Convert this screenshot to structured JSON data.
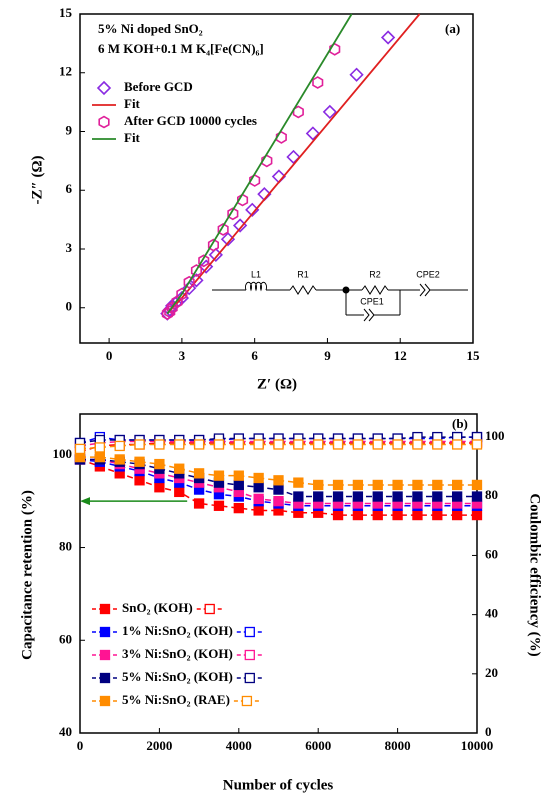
{
  "chart_data": [
    {
      "type": "scatter",
      "title": "5% Ni doped SnO₂",
      "subtitle": "6 M KOH+0.1 M K₄[Fe(CN)₆]",
      "panel_label": "(a)",
      "x_label": "Z′ (Ω)",
      "y_label": "-Z″ (Ω)",
      "xlim": [
        -1.2,
        15
      ],
      "ylim": [
        -1.8,
        15
      ],
      "xticks": [
        0,
        3,
        6,
        9,
        12,
        15
      ],
      "yticks": [
        0,
        3,
        6,
        9,
        12,
        15
      ],
      "series": [
        {
          "name": "Before GCD",
          "color": "#8a2be2",
          "marker": "diamond",
          "x": [
            2.4,
            2.5,
            2.6,
            2.8,
            3.0,
            3.3,
            3.6,
            4.0,
            4.4,
            4.9,
            5.4,
            5.9,
            6.4,
            7.0,
            7.6,
            8.4,
            9.1,
            10.2,
            11.5
          ],
          "values": [
            -0.3,
            -0.1,
            0.1,
            0.3,
            0.5,
            1.0,
            1.4,
            2.1,
            2.7,
            3.5,
            4.2,
            5.0,
            5.8,
            6.7,
            7.7,
            8.9,
            10.0,
            11.9,
            13.8
          ]
        },
        {
          "name": "Fit",
          "color": "#e02020",
          "marker": "none",
          "x": [
            2.4,
            3.0,
            12.8
          ],
          "values": [
            -0.3,
            0.5,
            15
          ]
        },
        {
          "name": "After GCD 10000 cycles",
          "color": "#e0209a",
          "marker": "hexagon",
          "x": [
            2.4,
            2.5,
            2.6,
            2.8,
            3.0,
            3.3,
            3.6,
            3.9,
            4.3,
            4.7,
            5.1,
            5.5,
            6.0,
            6.5,
            7.1,
            7.8,
            8.6,
            9.3
          ],
          "values": [
            -0.3,
            -0.2,
            0.0,
            0.3,
            0.7,
            1.3,
            1.9,
            2.4,
            3.2,
            4.0,
            4.8,
            5.5,
            6.5,
            7.5,
            8.7,
            10.0,
            11.5,
            13.2
          ]
        },
        {
          "name": "Fit",
          "color": "#2a8a2a",
          "marker": "none",
          "x": [
            2.4,
            3.0,
            10.0
          ],
          "values": [
            -0.3,
            0.7,
            15
          ]
        }
      ],
      "circuit": [
        "L1",
        "R1",
        "R2",
        "CPE1",
        "CPE2"
      ]
    },
    {
      "type": "line",
      "panel_label": "(b)",
      "x_label": "Number of cycles",
      "y_label": "Capacitance retention (%)",
      "y2_label": "Coulombic efficiency (%)",
      "xlim": [
        0,
        10000
      ],
      "ylim": [
        40,
        108.8
      ],
      "y2lim": [
        0,
        107.8
      ],
      "xticks": [
        0,
        2000,
        4000,
        6000,
        8000,
        10000
      ],
      "yticks": [
        40,
        60,
        80,
        100
      ],
      "y2ticks": [
        0,
        20,
        40,
        60,
        80,
        100
      ],
      "x": [
        0,
        500,
        1000,
        1500,
        2000,
        2500,
        3000,
        3500,
        4000,
        4500,
        5000,
        5500,
        6000,
        6500,
        7000,
        7500,
        8000,
        8500,
        9000,
        9500,
        10000
      ],
      "series": [
        {
          "name": "SnO₂ (KOH)",
          "color": "#ff0000",
          "values": [
            99,
            97.5,
            96,
            94.5,
            93,
            92,
            89.5,
            89,
            88.5,
            88,
            88,
            87.5,
            87.5,
            87,
            87,
            87,
            87,
            87,
            87,
            87,
            87
          ],
          "y2_values": [
            95,
            97,
            97.5,
            97.5,
            98,
            98,
            98,
            98,
            98,
            98,
            98,
            98,
            98,
            98,
            98,
            98,
            98,
            98,
            98,
            98,
            98
          ]
        },
        {
          "name": "1% Ni:SnO₂ (KOH)",
          "color": "#0000ff",
          "values": [
            99,
            98.5,
            97.5,
            96.5,
            95,
            94,
            92.5,
            91.5,
            91,
            90,
            89.5,
            89,
            89,
            89,
            89,
            89,
            89,
            89,
            89,
            89,
            89
          ],
          "y2_values": [
            98,
            100,
            99,
            99,
            99,
            99,
            99,
            99,
            99.5,
            99.5,
            99.5,
            99.5,
            99.5,
            99.5,
            99.5,
            99.5,
            99.5,
            99.5,
            99.5,
            100,
            100
          ]
        },
        {
          "name": "3% Ni:SnO₂ (KOH)",
          "color": "#ff1493",
          "values": [
            99,
            99,
            98,
            97,
            96,
            95,
            94,
            93,
            92,
            90.5,
            90,
            89.5,
            89.5,
            89.5,
            89.5,
            89.5,
            89.5,
            89.5,
            89.5,
            89.5,
            89.5
          ],
          "y2_values": [
            97,
            98,
            98.5,
            98.5,
            98.5,
            98.5,
            98.5,
            98.5,
            98.5,
            98.5,
            98.5,
            98.5,
            98.5,
            98.5,
            98.5,
            98.5,
            98.5,
            98.5,
            98.5,
            98.5,
            98.5
          ]
        },
        {
          "name": "5% Ni:SnO₂ (KOH)",
          "color": "#000080",
          "values": [
            99,
            99,
            98.5,
            98,
            97,
            96,
            95,
            94,
            93.5,
            93,
            92.5,
            91,
            91,
            91,
            91,
            91,
            91,
            91,
            91,
            91,
            91
          ],
          "y2_values": [
            98,
            99,
            99,
            99,
            99,
            99,
            99,
            99.5,
            99.5,
            99.5,
            99.5,
            99.5,
            99.5,
            99.5,
            99.5,
            99.5,
            99.5,
            100,
            100,
            100,
            100
          ]
        },
        {
          "name": "5% Ni:SnO₂ (RAE)",
          "color": "#ff8c00",
          "values": [
            99.5,
            99.5,
            99,
            98.5,
            98,
            97,
            96,
            95.5,
            95.5,
            95,
            94.5,
            94,
            93.5,
            93.5,
            93.5,
            93.5,
            93.5,
            93.5,
            93.5,
            93.5,
            93.5
          ],
          "y2_values": [
            96,
            96.5,
            97,
            97.5,
            97.5,
            97.5,
            97.5,
            97.5,
            97.5,
            97.5,
            97.5,
            97.5,
            97.5,
            97.5,
            97.5,
            97.5,
            97.5,
            97.5,
            97.5,
            97.5,
            97.5
          ]
        }
      ],
      "arrow": {
        "color": "#1a8a1a",
        "x": [
          2700,
          0
        ],
        "y": 90
      }
    }
  ]
}
